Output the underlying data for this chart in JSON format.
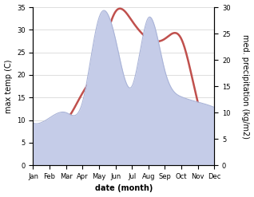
{
  "months": [
    "Jan",
    "Feb",
    "Mar",
    "Apr",
    "May",
    "Jun",
    "Jul",
    "Aug",
    "Sep",
    "Oct",
    "Nov",
    "Dec"
  ],
  "temperature": [
    4,
    9,
    10,
    16,
    23,
    34,
    32,
    28,
    28,
    28,
    14,
    11
  ],
  "precipitation": [
    8,
    9,
    10,
    12,
    28,
    24,
    15,
    28,
    18,
    13,
    12,
    11
  ],
  "temp_color": "#c0504d",
  "precip_fill_color": "#c5cce8",
  "precip_edge_color": "#aab4d8",
  "xlabel": "date (month)",
  "ylabel_left": "max temp (C)",
  "ylabel_right": "med. precipitation (kg/m2)",
  "ylim_left": [
    0,
    35
  ],
  "ylim_right": [
    0,
    30
  ],
  "yticks_left": [
    0,
    5,
    10,
    15,
    20,
    25,
    30,
    35
  ],
  "yticks_right": [
    0,
    5,
    10,
    15,
    20,
    25,
    30
  ],
  "bg_color": "#ffffff",
  "grid_color": "#d0d0d0"
}
